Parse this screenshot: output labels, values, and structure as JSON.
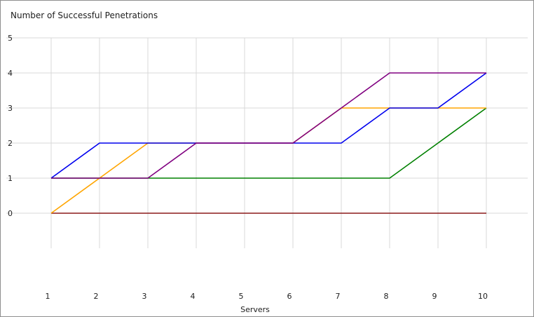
{
  "chart_data": {
    "type": "line",
    "title": "Number of Successful Penetrations",
    "xlabel": "Servers",
    "ylabel": "",
    "x": [
      1,
      2,
      3,
      4,
      5,
      6,
      7,
      8,
      9,
      10
    ],
    "x_tick_labels": [
      "1",
      "2",
      "3",
      "4",
      "5",
      "6",
      "7",
      "8",
      "9",
      "10"
    ],
    "y_tick_labels": [
      "0",
      "1",
      "2",
      "3",
      "4",
      "5"
    ],
    "ylim": [
      -1,
      5
    ],
    "grid": true,
    "legend": "none",
    "series": [
      {
        "color": "#8b1a1a",
        "values": [
          0,
          0,
          0,
          0,
          0,
          0,
          0,
          0,
          0,
          0
        ]
      },
      {
        "color": "#008000",
        "values": [
          1,
          1,
          1,
          1,
          1,
          1,
          1,
          1,
          2,
          3
        ]
      },
      {
        "color": "#ffa500",
        "values": [
          0,
          1,
          2,
          2,
          2,
          2,
          3,
          3,
          3,
          3
        ]
      },
      {
        "color": "#0000ee",
        "values": [
          1,
          2,
          2,
          2,
          2,
          2,
          2,
          3,
          3,
          4
        ]
      },
      {
        "color": "#800080",
        "values": [
          1,
          1,
          1,
          2,
          2,
          2,
          3,
          4,
          4,
          4
        ]
      }
    ]
  }
}
